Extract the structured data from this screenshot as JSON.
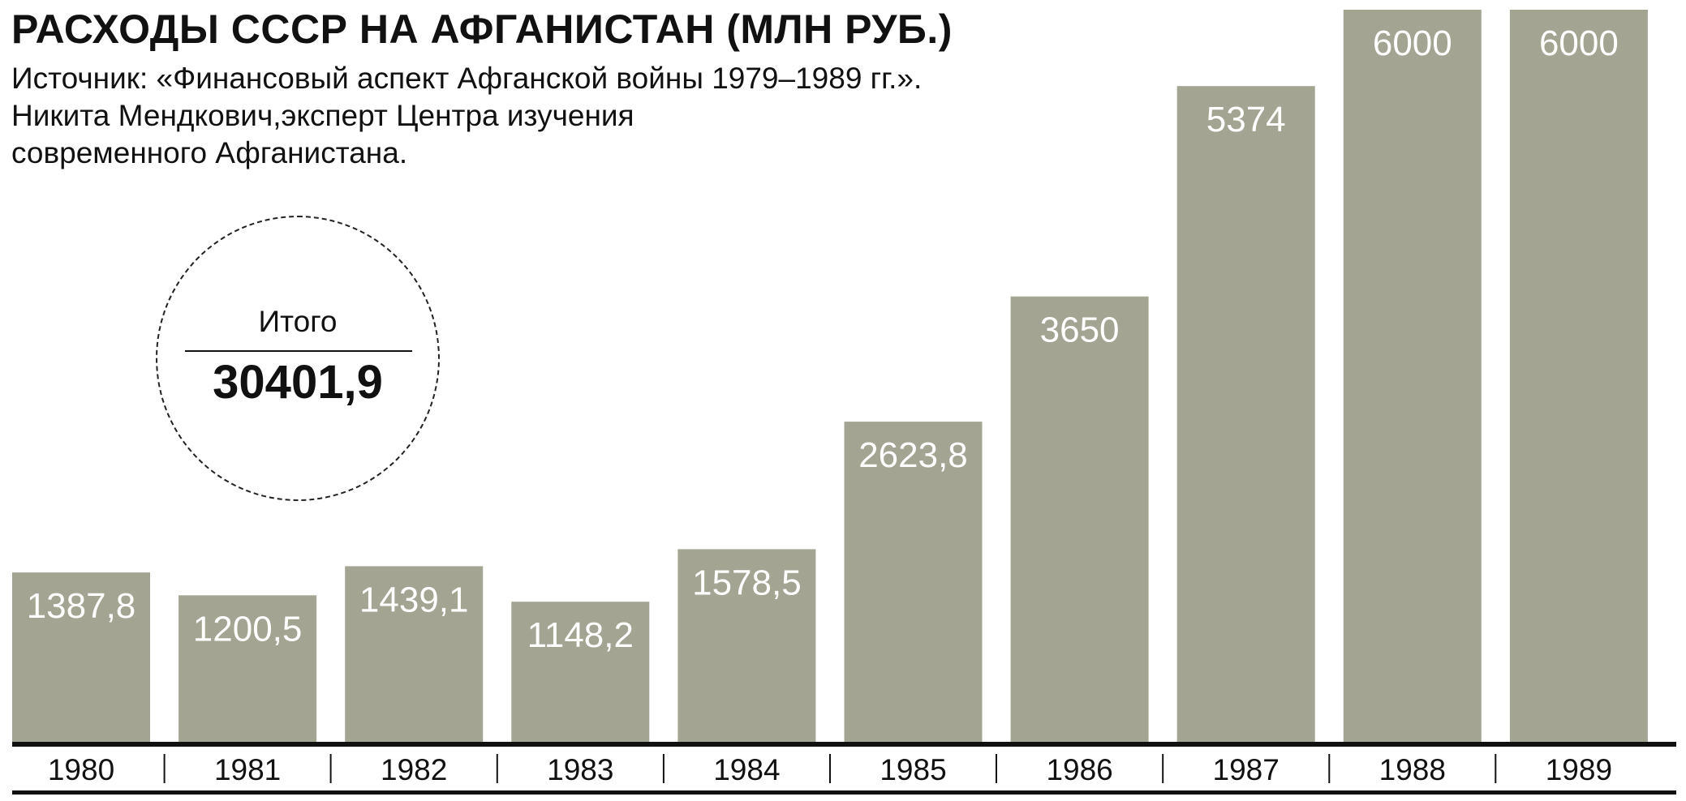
{
  "header": {
    "title": "РАСХОДЫ СССР НА АФГАНИСТАН (МЛН РУБ.)",
    "source_lines": [
      "Источник: «Финансовый аспект Афганской войны 1979–1989 гг.».",
      "Никита Мендкович,эксперт Центра изучения",
      "современного Афганистана."
    ]
  },
  "total": {
    "label": "Итого",
    "value": "30401,9"
  },
  "colors": {
    "bar": "#a3a491",
    "bar_label": "#ffffff",
    "axis": "#111111",
    "text": "#111111"
  },
  "chart_data": {
    "type": "bar",
    "title": "РАСХОДЫ СССР НА АФГАНИСТАН (МЛН РУБ.)",
    "xlabel": "",
    "ylabel": "",
    "categories": [
      "1980",
      "1981",
      "1982",
      "1983",
      "1984",
      "1985",
      "1986",
      "1987",
      "1988",
      "1989"
    ],
    "values": [
      1387.8,
      1200.5,
      1439.1,
      1148.2,
      1578.5,
      2623.8,
      3650,
      5374,
      6000,
      6000
    ],
    "value_labels": [
      "1387,8",
      "1200,5",
      "1439,1",
      "1148,2",
      "1578,5",
      "2623,8",
      "3650",
      "5374",
      "6000",
      "6000"
    ],
    "grid": false,
    "legend": "none"
  }
}
